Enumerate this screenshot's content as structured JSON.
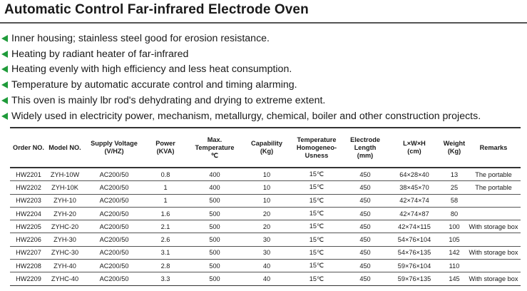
{
  "page": {
    "title": "Automatic Control Far-infrared Electrode Oven"
  },
  "features": [
    "Inner housing; stainless steel good for erosion resistance.",
    "Heating by radiant heater of far-infrared",
    "Heating evenly with high efficiency and less heat consumption.",
    "Temperature by automatic accurate control and timing alarming.",
    "This oven is mainly lbr rod's dehydrating and drying to extreme extent.",
    "Widely used in electricity power, mechanism, metallurgy, chemical, boiler and other construction projects."
  ],
  "bullet_color": "#1f9b3a",
  "table": {
    "headers": [
      [
        "Order NO."
      ],
      [
        "Model NO."
      ],
      [
        "Supply Voltage",
        "(V/HZ)"
      ],
      [
        "Power",
        "(KVA)"
      ],
      [
        "Max.",
        "Temperature",
        "℃"
      ],
      [
        "Capability",
        "(Kg)"
      ],
      [
        "Temperature",
        "Homogeneo-",
        "Usness"
      ],
      [
        "Electrode",
        "Length",
        "(mm)"
      ],
      [
        "L×W×H",
        "(cm)"
      ],
      [
        "Weight",
        "(Kg)"
      ],
      [
        "Remarks"
      ]
    ],
    "rows": [
      [
        "HW2201",
        "ZYH-10W",
        "AC200/50",
        "0.8",
        "400",
        "10",
        "15℃",
        "450",
        "64×28×40",
        "13",
        "The portable"
      ],
      [
        "HW2202",
        "ZYH-10K",
        "AC200/50",
        "1",
        "400",
        "10",
        "15℃",
        "450",
        "38×45×70",
        "25",
        "The portable"
      ],
      [
        "HW2203",
        "ZYH-10",
        "AC200/50",
        "1",
        "500",
        "10",
        "15℃",
        "450",
        "42×74×74",
        "58",
        ""
      ],
      [
        "HW2204",
        "ZYH-20",
        "AC200/50",
        "1.6",
        "500",
        "20",
        "15℃",
        "450",
        "42×74×87",
        "80",
        ""
      ],
      [
        "HW2205",
        "ZYHC-20",
        "AC200/50",
        "2.1",
        "500",
        "20",
        "15℃",
        "450",
        "42×74×115",
        "100",
        "With storage box"
      ],
      [
        "HW2206",
        "ZYH-30",
        "AC200/50",
        "2.6",
        "500",
        "30",
        "15℃",
        "450",
        "54×76×104",
        "105",
        ""
      ],
      [
        "HW2207",
        "ZYHC-30",
        "AC200/50",
        "3.1",
        "500",
        "30",
        "15℃",
        "450",
        "54×76×135",
        "142",
        "With storage box"
      ],
      [
        "HW2208",
        "ZYH-40",
        "AC200/50",
        "2.8",
        "500",
        "40",
        "15℃",
        "450",
        "59×76×104",
        "110",
        ""
      ],
      [
        "HW2209",
        "ZYHC-40",
        "AC200/50",
        "3.3",
        "500",
        "40",
        "15℃",
        "450",
        "59×76×135",
        "145",
        "With storage box"
      ]
    ]
  }
}
